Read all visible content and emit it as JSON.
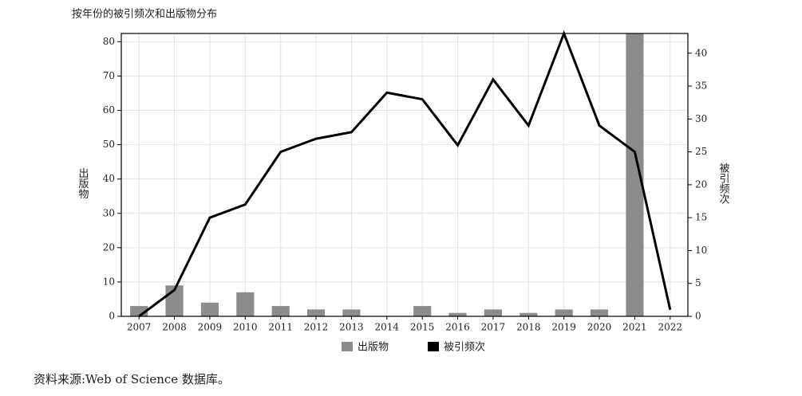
{
  "chart_data": {
    "type": "bar_line",
    "title": "按年份的被引频次和出版物分布",
    "ylabel": "出版物",
    "y2label": "被引频次",
    "source": "资料来源:Web of Science 数据库。",
    "categories": [
      "2007",
      "2008",
      "2009",
      "2010",
      "2011",
      "2012",
      "2013",
      "2014",
      "2015",
      "2016",
      "2017",
      "2018",
      "2019",
      "2020",
      "2021",
      "2022"
    ],
    "series": [
      {
        "name": "出版物",
        "type": "bar",
        "color": "#8c8c8c",
        "values": [
          3,
          9,
          4,
          7,
          3,
          2,
          2,
          0,
          3,
          1,
          2,
          1,
          2,
          2,
          83,
          0
        ]
      },
      {
        "name": "被引频次",
        "type": "line",
        "axis": "y2",
        "color": "#000000",
        "values": [
          0,
          4,
          15,
          17,
          25,
          27,
          28,
          34,
          33,
          26,
          36,
          29,
          43,
          29,
          25,
          1
        ]
      }
    ],
    "ylim": [
      0,
      82.4
    ],
    "yticks": [
      0,
      10,
      20,
      30,
      40,
      50,
      60,
      70,
      80
    ],
    "y2lim": [
      0,
      43
    ],
    "y2ticks": [
      0,
      5,
      10,
      15,
      20,
      25,
      30,
      35,
      40
    ],
    "grid": true,
    "legend": "bottom"
  }
}
